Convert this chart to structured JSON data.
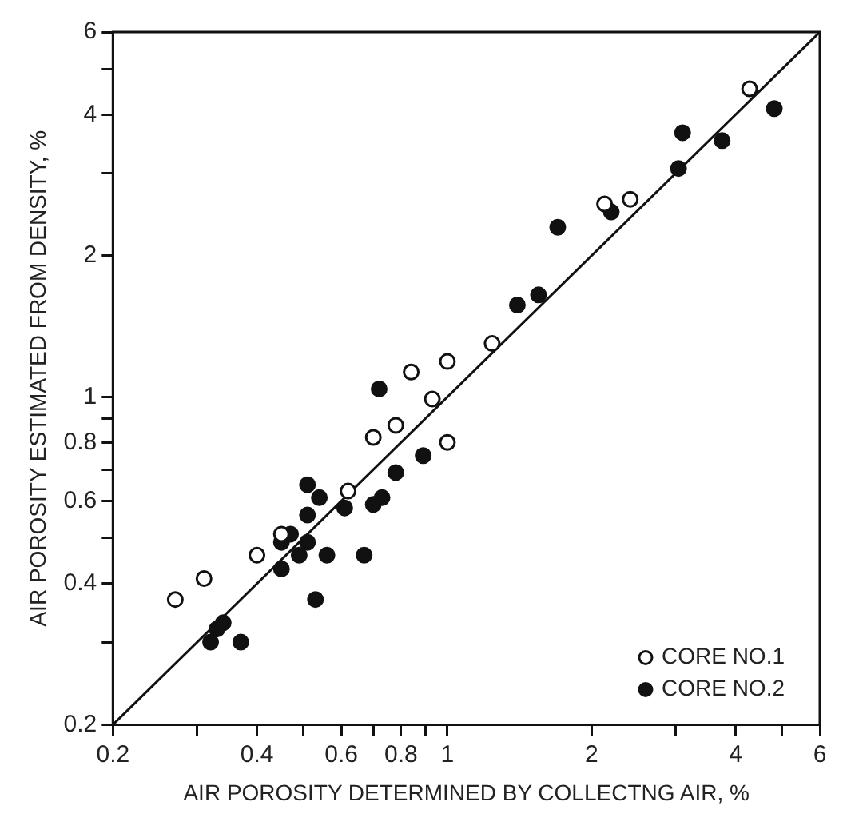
{
  "chart_data": {
    "type": "scatter",
    "xlabel": "AIR POROSITY DETERMINED BY COLLECTNG AIR, %",
    "ylabel": "AIR POROSITY ESTIMATED FROM DENSITY, %",
    "log": "xy",
    "grid": false,
    "legend": "bottom right",
    "marker": "circle",
    "xlim": [
      0.2,
      6
    ],
    "ylim": [
      0.2,
      6
    ],
    "xticks": [
      0.2,
      {
        "value": 0.3,
        "label": null
      },
      0.4,
      {
        "value": 0.5,
        "label": null
      },
      0.6,
      {
        "value": 0.7,
        "label": null
      },
      0.8,
      {
        "value": 0.9,
        "label": null
      },
      1,
      2,
      {
        "value": 3,
        "label": null
      },
      4,
      {
        "value": 5,
        "label": null
      },
      6
    ],
    "yticks": [
      0.2,
      {
        "value": 0.3,
        "label": null
      },
      0.4,
      {
        "value": 0.5,
        "label": null
      },
      0.6,
      {
        "value": 0.7,
        "label": null
      },
      0.8,
      {
        "value": 0.9,
        "label": null
      },
      1,
      2,
      {
        "value": 3,
        "label": null
      },
      4,
      {
        "value": 5,
        "label": null
      },
      6
    ],
    "series": [
      {
        "name": "CORE NO.1",
        "color": "#ffffff",
        "x": [
          0.27,
          0.31,
          0.4,
          0.45,
          0.62,
          0.7,
          0.78,
          1.0,
          0.84,
          0.93,
          1.0,
          1.24,
          2.13,
          2.41,
          4.28
        ],
        "values": [
          0.37,
          0.41,
          0.46,
          0.51,
          0.63,
          0.82,
          0.87,
          0.8,
          1.13,
          0.99,
          1.19,
          1.3,
          2.58,
          2.64,
          4.54
        ]
      },
      {
        "name": "CORE NO.2",
        "color": "#111111",
        "x": [
          0.32,
          0.33,
          0.34,
          0.37,
          0.45,
          0.45,
          0.47,
          0.49,
          0.51,
          0.51,
          0.51,
          0.54,
          0.53,
          0.56,
          0.61,
          0.67,
          0.7,
          0.73,
          0.78,
          0.89,
          0.72,
          1.4,
          1.55,
          1.7,
          2.2,
          3.04,
          3.1,
          3.75,
          4.82
        ],
        "values": [
          0.3,
          0.32,
          0.33,
          0.3,
          0.43,
          0.49,
          0.51,
          0.46,
          0.49,
          0.56,
          0.65,
          0.61,
          0.37,
          0.46,
          0.58,
          0.46,
          0.59,
          0.61,
          0.69,
          0.75,
          1.04,
          1.57,
          1.65,
          2.3,
          2.48,
          3.07,
          3.66,
          3.52,
          4.12
        ]
      },
      {
        "type": "line",
        "marker": "none",
        "color": "#111111",
        "x": [
          0.2,
          6
        ],
        "values": [
          0.2,
          6
        ]
      }
    ]
  }
}
